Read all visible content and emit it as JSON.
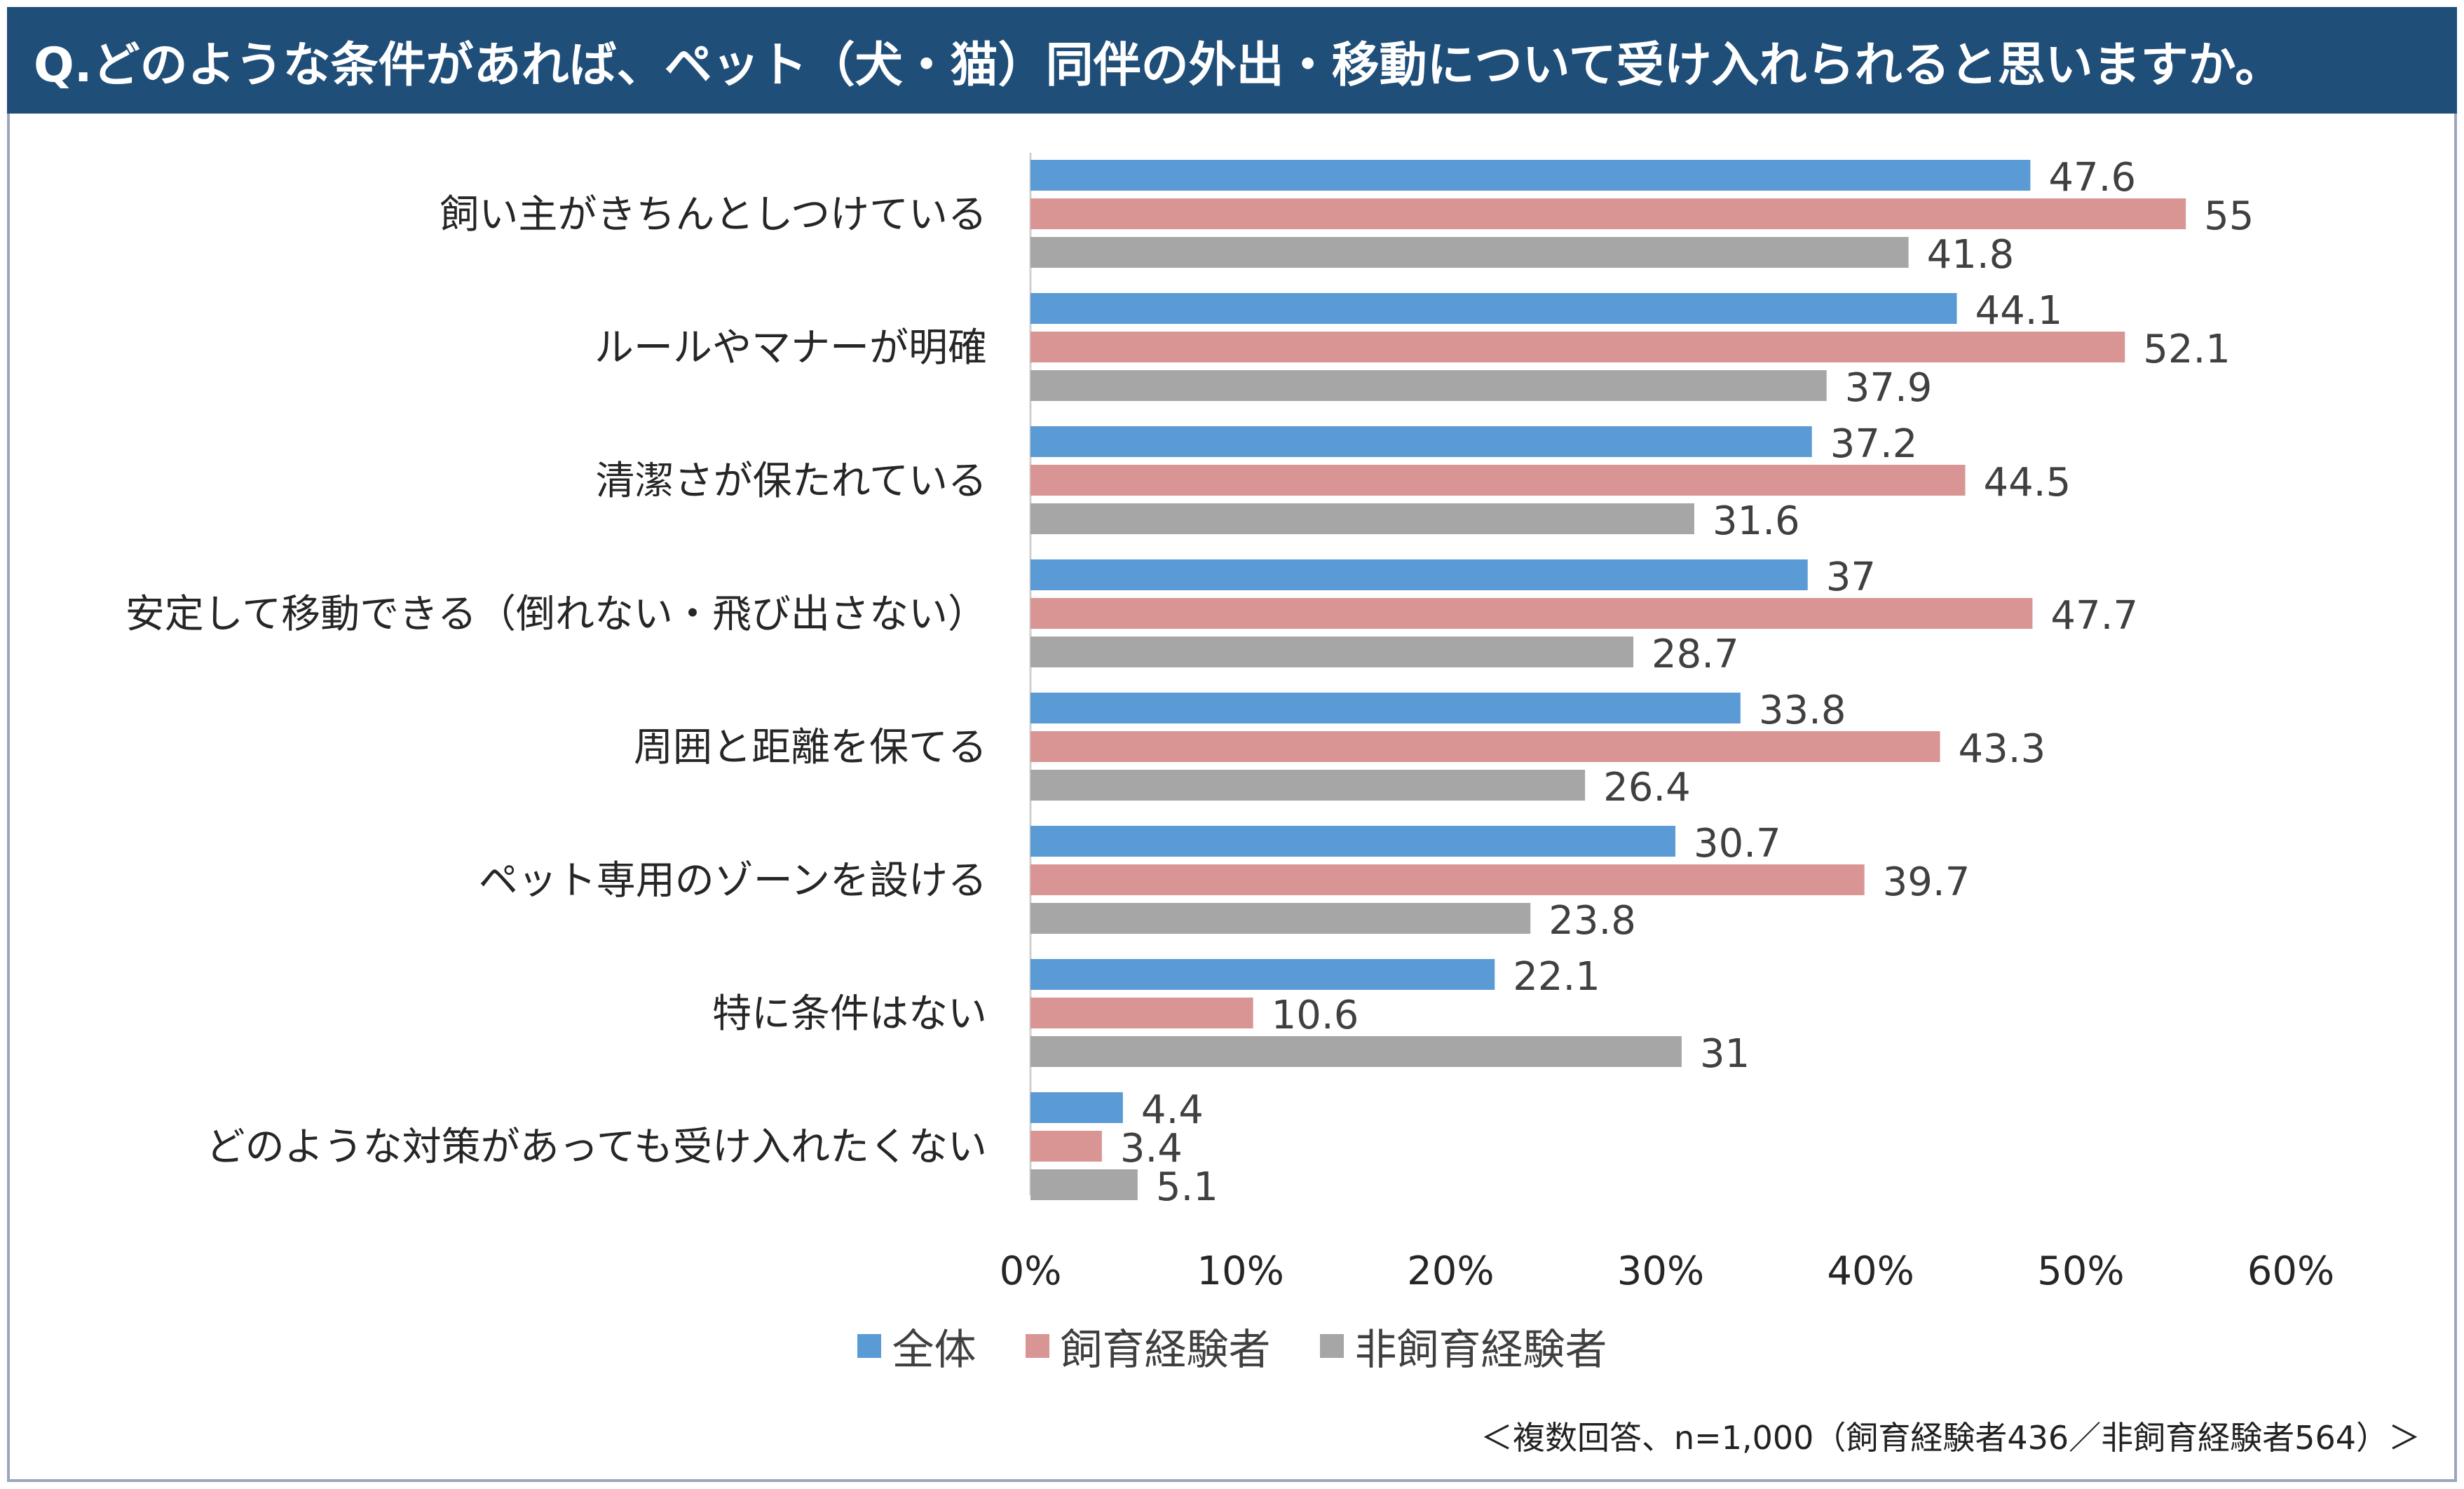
{
  "title": "Q.どのような条件があれば、ペット（犬・猫）同伴の外出・移動について受け入れられると思いますか。",
  "footnote": "＜複数回答、n=1,000（飼育経験者436／非飼育経験者564）＞",
  "chart_data": {
    "type": "bar",
    "orientation": "horizontal",
    "title": "Q.どのような条件があれば、ペット（犬・猫）同伴の外出・移動について受け入れられると思いますか。",
    "categories": [
      "飼い主がきちんとしつけている",
      "ルールやマナーが明確",
      "清潔さが保たれている",
      "安定して移動できる（倒れない・飛び出さない）",
      "周囲と距離を保てる",
      "ペット専用のゾーンを設ける",
      "特に条件はない",
      "どのような対策があっても受け入れたくない"
    ],
    "series": [
      {
        "name": "全体",
        "color": "#5b9bd5",
        "values": [
          47.6,
          44.1,
          37.2,
          37,
          33.8,
          30.7,
          22.1,
          4.4
        ],
        "labels": [
          "47.6",
          "44.1",
          "37.2",
          "37",
          "33.8",
          "30.7",
          "22.1",
          "4.4"
        ]
      },
      {
        "name": "飼育経験者",
        "color": "#d99594",
        "values": [
          55,
          52.1,
          44.5,
          47.7,
          43.3,
          39.7,
          10.6,
          3.4
        ],
        "labels": [
          "55",
          "52.1",
          "44.5",
          "47.7",
          "43.3",
          "39.7",
          "10.6",
          "3.4"
        ]
      },
      {
        "name": "非飼育経験者",
        "color": "#a6a6a6",
        "values": [
          41.8,
          37.9,
          31.6,
          28.7,
          26.4,
          23.8,
          31,
          5.1
        ],
        "labels": [
          "41.8",
          "37.9",
          "31.6",
          "28.7",
          "26.4",
          "23.8",
          "31",
          "5.1"
        ]
      }
    ],
    "xlim": [
      0,
      60
    ],
    "xticks": [
      0,
      10,
      20,
      30,
      40,
      50,
      60
    ],
    "xtick_labels": [
      "0%",
      "10%",
      "20%",
      "30%",
      "40%",
      "50%",
      "60%"
    ],
    "legend_position": "bottom",
    "grid": false
  },
  "colors": {
    "title_bg": "#1f4e79",
    "title_text": "#ffffff"
  }
}
